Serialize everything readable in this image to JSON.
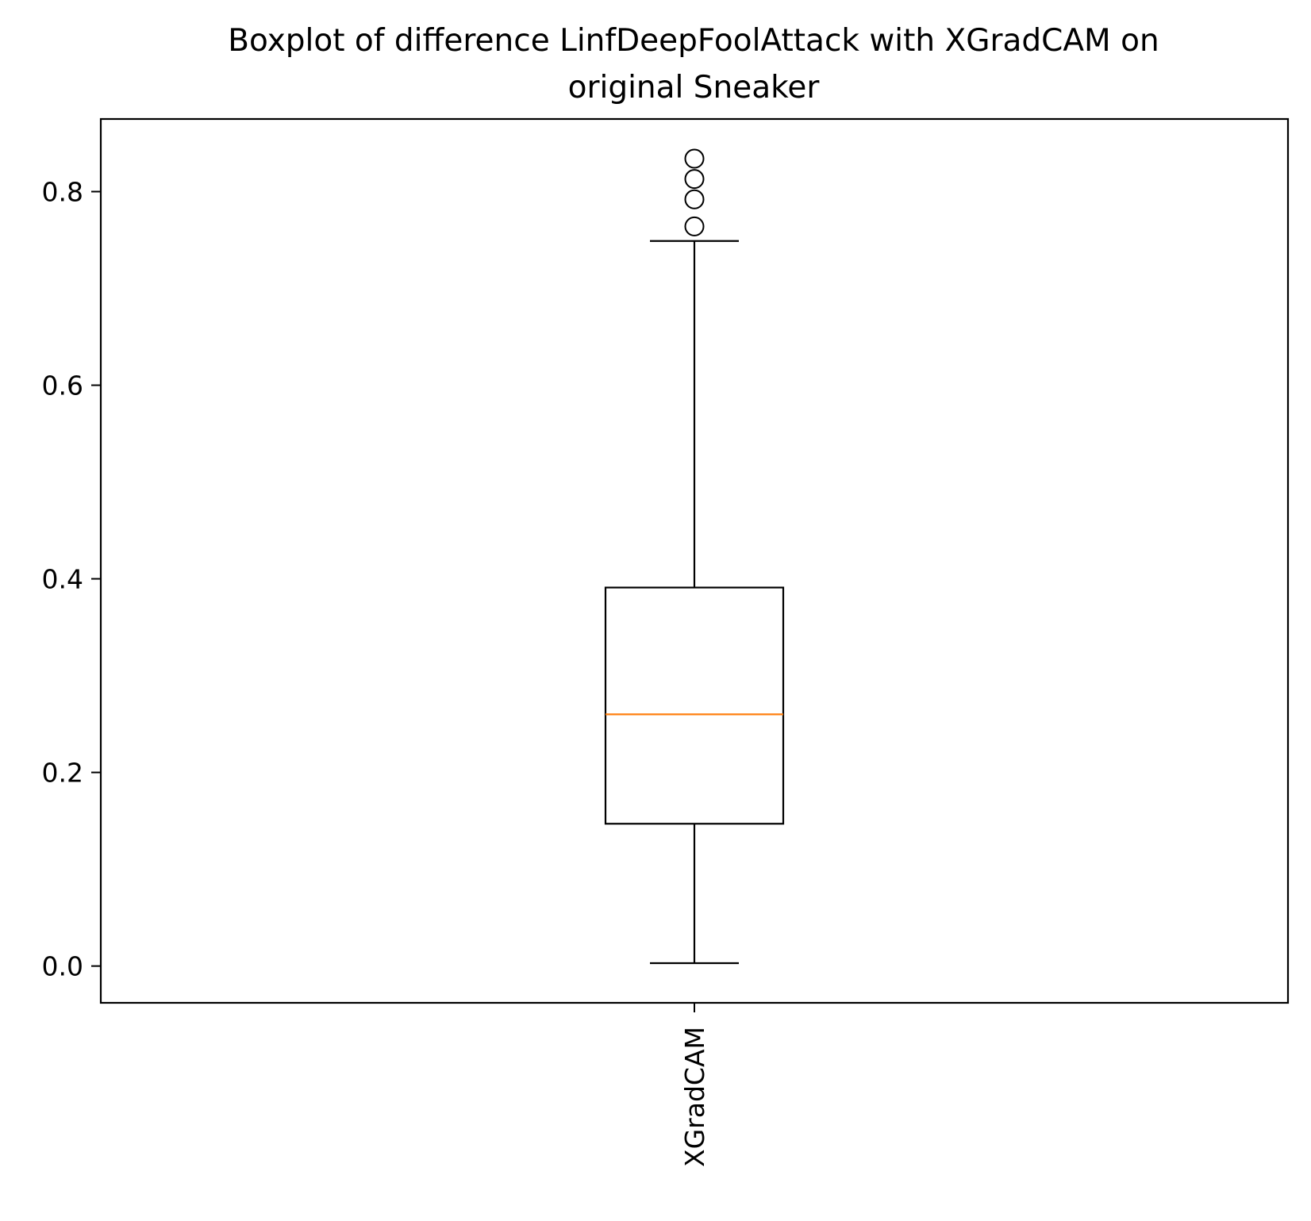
{
  "chart_data": {
    "type": "boxplot",
    "title_lines": [
      "Boxplot of difference LinfDeepFoolAttack with XGradCAM on",
      "original Sneaker"
    ],
    "xlabel": "",
    "ylabel": "",
    "ylim": [
      -0.038,
      0.875
    ],
    "yticks": [
      0.0,
      0.2,
      0.4,
      0.6,
      0.8
    ],
    "ytick_labels": [
      "0.0",
      "0.2",
      "0.4",
      "0.6",
      "0.8"
    ],
    "categories": [
      "XGradCAM"
    ],
    "boxes": [
      {
        "label": "XGradCAM",
        "whisker_low": 0.003,
        "q1": 0.147,
        "median": 0.26,
        "q3": 0.391,
        "whisker_high": 0.749,
        "outliers": [
          0.764,
          0.792,
          0.813,
          0.834
        ]
      }
    ],
    "grid": false,
    "colors": {
      "box": "#000000",
      "median": "#ff7f0e"
    }
  }
}
